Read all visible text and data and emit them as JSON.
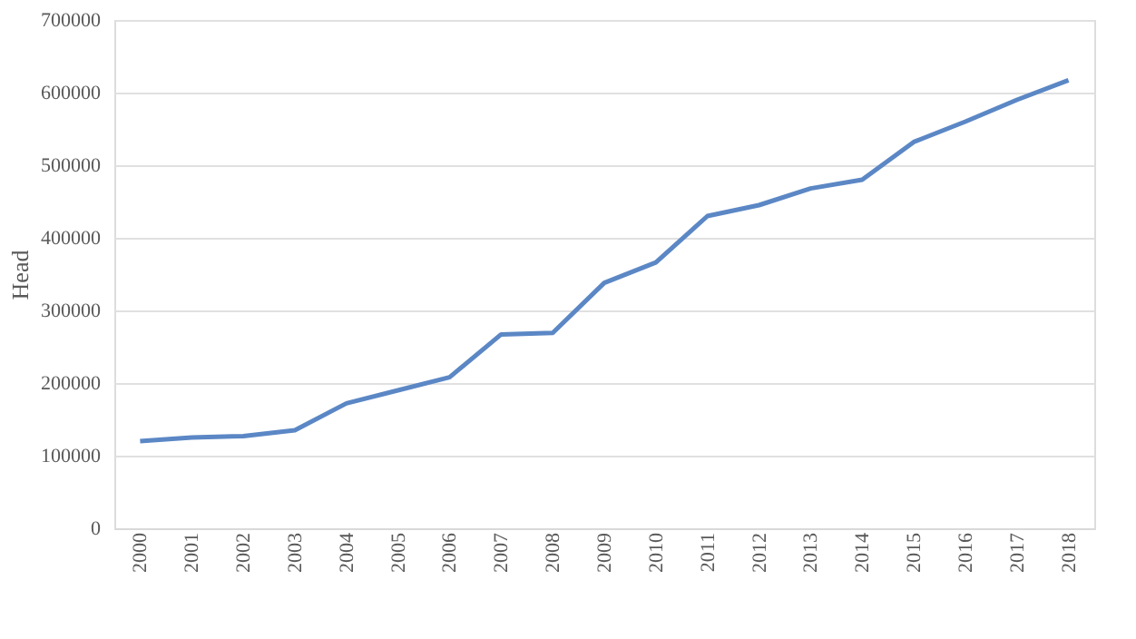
{
  "chart_data": {
    "type": "line",
    "ylabel": "Head",
    "categories": [
      "2000",
      "2001",
      "2002",
      "2003",
      "2004",
      "2005",
      "2006",
      "2007",
      "2008",
      "2009",
      "2010",
      "2011",
      "2012",
      "2013",
      "2014",
      "2015",
      "2016",
      "2017",
      "2018"
    ],
    "series": [
      {
        "color": "#5b87c5",
        "values": [
          120000,
          125000,
          127000,
          135000,
          172000,
          190000,
          208000,
          267000,
          269000,
          338000,
          366000,
          430000,
          445000,
          468000,
          480000,
          532000,
          560000,
          590000,
          617000
        ]
      }
    ],
    "ylim": [
      0,
      700000
    ],
    "yticks": [
      0,
      100000,
      200000,
      300000,
      400000,
      500000,
      600000,
      700000
    ],
    "grid": "y",
    "marker": "none",
    "line_style": "solid"
  }
}
